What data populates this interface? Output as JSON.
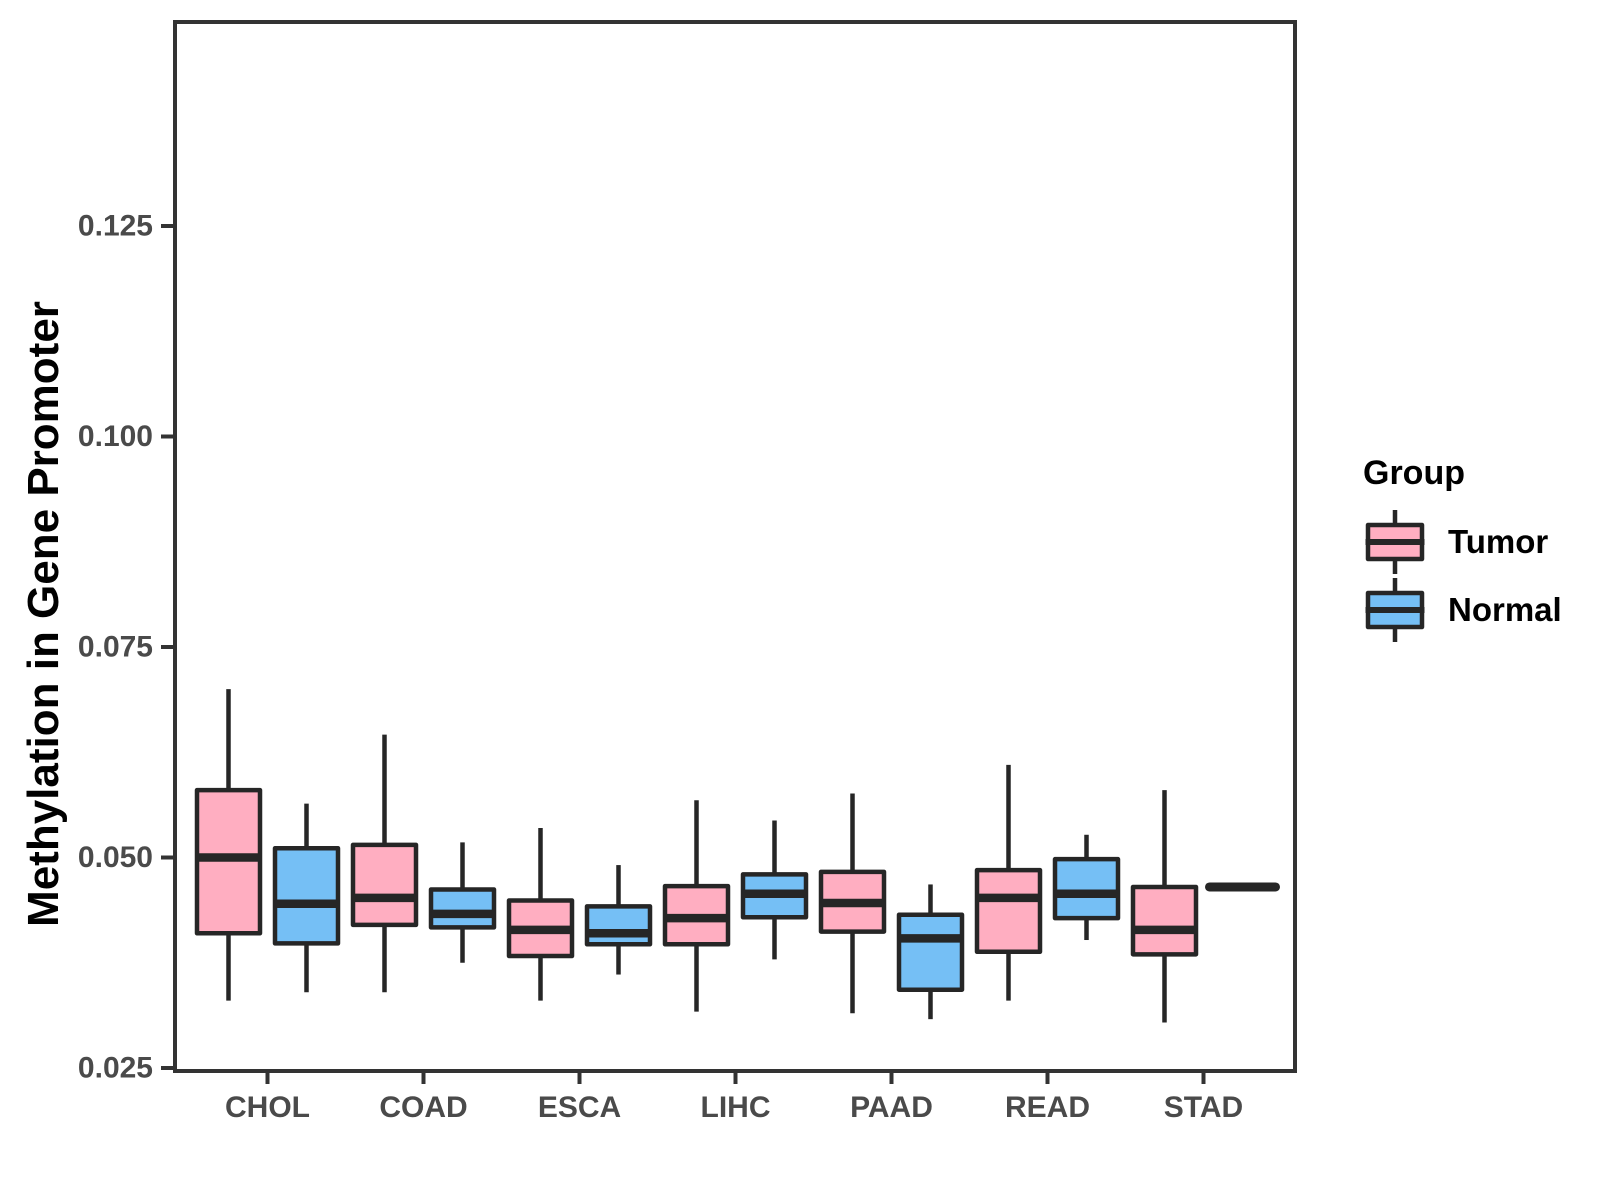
{
  "chart_data": {
    "type": "boxplot",
    "title": "",
    "xlabel": "",
    "ylabel": "Methylation in Gene Promoter",
    "categories": [
      "CHOL",
      "COAD",
      "ESCA",
      "LIHC",
      "PAAD",
      "READ",
      "STAD"
    ],
    "y_axis": {
      "ticks": [
        {
          "v": 0.025,
          "label": "0.025"
        },
        {
          "v": 0.05,
          "label": "0.050"
        },
        {
          "v": 0.075,
          "label": "0.075"
        },
        {
          "v": 0.1,
          "label": "0.100"
        },
        {
          "v": 0.125,
          "label": "0.125"
        }
      ],
      "ylim": [
        0.0246,
        0.1487
      ]
    },
    "grid": "off",
    "legend_position": "right",
    "legend": {
      "title": "Group",
      "entries": [
        {
          "label": "Tumor",
          "color": "#FFAEC1"
        },
        {
          "label": "Normal",
          "color": "#75BFF5"
        }
      ]
    },
    "colors": {
      "tumor_fill": "#FFAEC1",
      "normal_fill": "#75BFF5",
      "box_stroke": "#262626",
      "panel_border": "#333333",
      "axis_text": "#4a4a4a"
    },
    "series": [
      {
        "name": "Tumor",
        "color": "#FFAEC1",
        "boxes": [
          {
            "category": "CHOL",
            "min": 0.033,
            "q1": 0.041,
            "median": 0.05,
            "q3": 0.058,
            "max": 0.07
          },
          {
            "category": "COAD",
            "min": 0.034,
            "q1": 0.042,
            "median": 0.0452,
            "q3": 0.0515,
            "max": 0.0646
          },
          {
            "category": "ESCA",
            "min": 0.033,
            "q1": 0.0383,
            "median": 0.0414,
            "q3": 0.0449,
            "max": 0.0535
          },
          {
            "category": "LIHC",
            "min": 0.0317,
            "q1": 0.0397,
            "median": 0.0428,
            "q3": 0.0466,
            "max": 0.0568
          },
          {
            "category": "PAAD",
            "min": 0.0315,
            "q1": 0.0412,
            "median": 0.0446,
            "q3": 0.0483,
            "max": 0.0576
          },
          {
            "category": "READ",
            "min": 0.033,
            "q1": 0.0388,
            "median": 0.0452,
            "q3": 0.0485,
            "max": 0.061
          },
          {
            "category": "STAD",
            "min": 0.0304,
            "q1": 0.0385,
            "median": 0.0414,
            "q3": 0.0465,
            "max": 0.058
          }
        ]
      },
      {
        "name": "Normal",
        "color": "#75BFF5",
        "boxes": [
          {
            "category": "CHOL",
            "min": 0.034,
            "q1": 0.0398,
            "median": 0.0445,
            "q3": 0.0511,
            "max": 0.0564
          },
          {
            "category": "COAD",
            "min": 0.0375,
            "q1": 0.0417,
            "median": 0.0433,
            "q3": 0.0462,
            "max": 0.0518
          },
          {
            "category": "ESCA",
            "min": 0.0361,
            "q1": 0.0397,
            "median": 0.041,
            "q3": 0.0442,
            "max": 0.0491
          },
          {
            "category": "LIHC",
            "min": 0.0379,
            "q1": 0.0429,
            "median": 0.0457,
            "q3": 0.048,
            "max": 0.0544
          },
          {
            "category": "PAAD",
            "min": 0.0308,
            "q1": 0.0343,
            "median": 0.0404,
            "q3": 0.0432,
            "max": 0.0468
          },
          {
            "category": "READ",
            "min": 0.0402,
            "q1": 0.0428,
            "median": 0.0457,
            "q3": 0.0498,
            "max": 0.0527
          },
          {
            "category": "STAD",
            "min": 0.0465,
            "q1": 0.0465,
            "median": 0.0465,
            "q3": 0.0465,
            "max": 0.0465,
            "single": true
          }
        ]
      }
    ]
  }
}
